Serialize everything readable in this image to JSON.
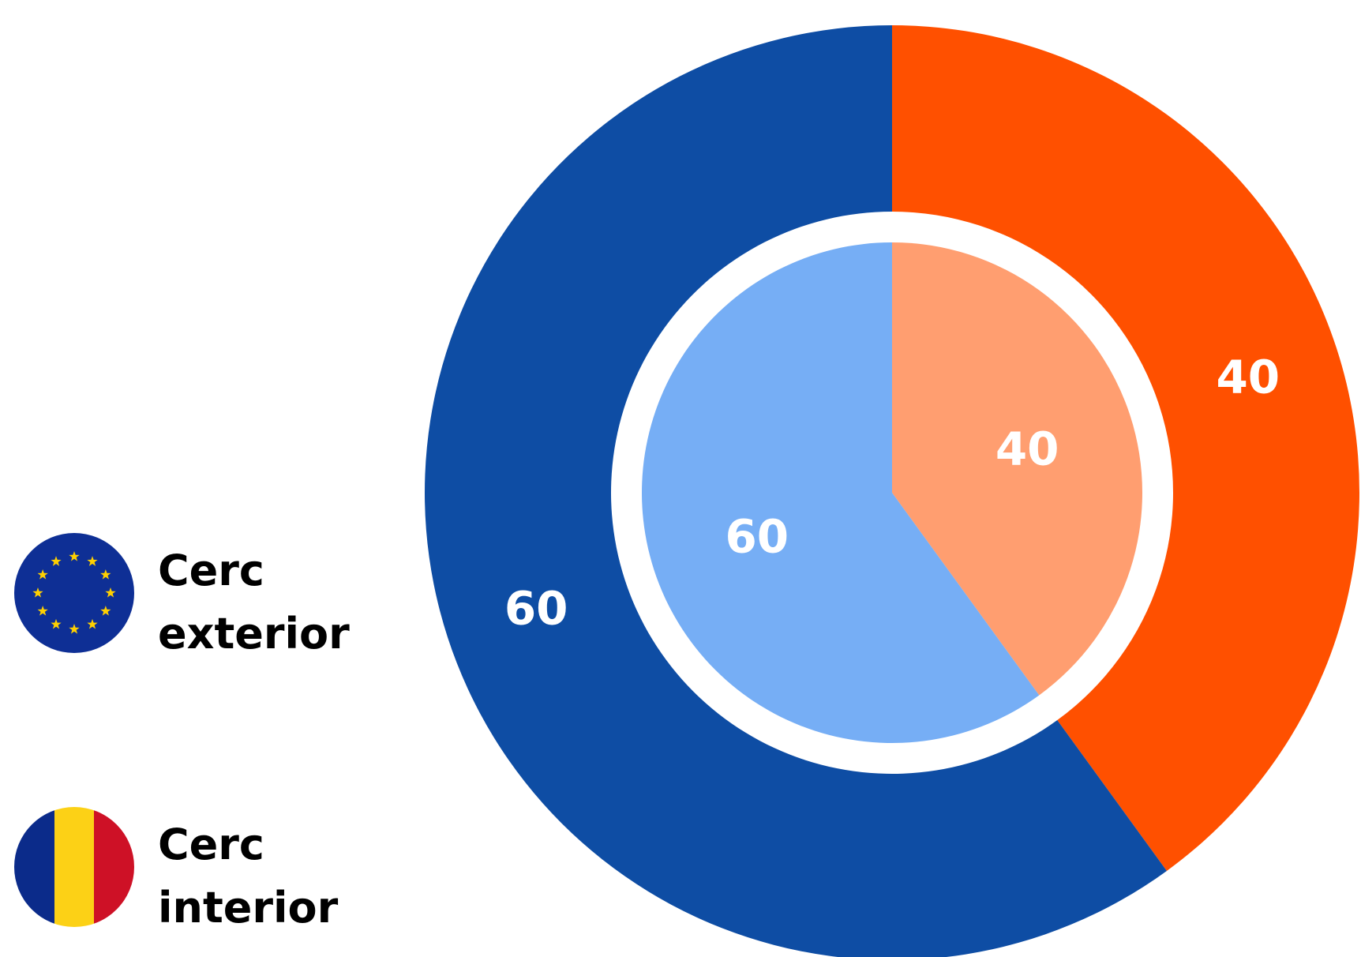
{
  "chart_data": {
    "type": "pie",
    "rings": [
      {
        "name": "Cerc exterior",
        "slices": [
          {
            "label": "40",
            "value": 40,
            "color": "#FF5000"
          },
          {
            "label": "60",
            "value": 60,
            "color": "#0E4DA4"
          }
        ]
      },
      {
        "name": "Cerc interior",
        "slices": [
          {
            "label": "40",
            "value": 40,
            "color": "#FF9E70"
          },
          {
            "label": "60",
            "value": 60,
            "color": "#76AEF5"
          }
        ]
      }
    ],
    "legend": {
      "placement": "left",
      "items": [
        {
          "label": "Cerc exterior",
          "icon": "eu-flag-icon"
        },
        {
          "label": "Cerc interior",
          "icon": "romania-flag-icon"
        }
      ]
    },
    "colors": {
      "eu_blue": "#0E2F95",
      "eu_star": "#FFD000",
      "ro_blue": "#0B2B8A",
      "ro_yellow": "#FCD116",
      "ro_red": "#CE1126"
    }
  }
}
